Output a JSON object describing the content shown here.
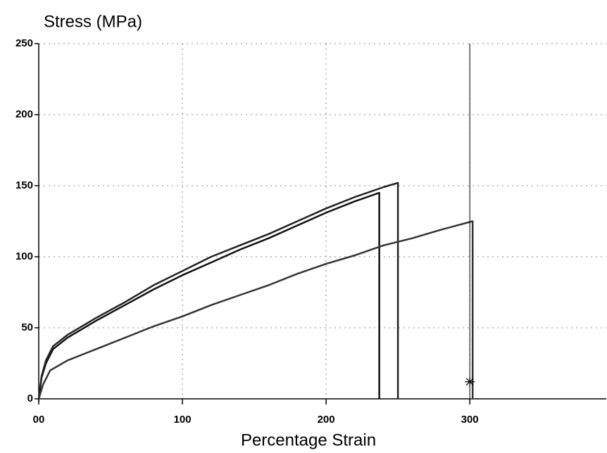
{
  "chart_data": {
    "type": "line",
    "title": "Stress (MPa)",
    "x_label": "Percentage Strain",
    "xlim": [
      0,
      395
    ],
    "ylim": [
      -2,
      250
    ],
    "xticks": [
      {
        "value": 0,
        "label": "00"
      },
      100,
      200,
      300
    ],
    "yticks": [
      0,
      50,
      100,
      150,
      200,
      250
    ],
    "grid": true,
    "series": [
      {
        "color": "#111111",
        "x": [
          0,
          2,
          5,
          10,
          20,
          40,
          60,
          80,
          100,
          120,
          140,
          160,
          180,
          200,
          220,
          237,
          237
        ],
        "values": [
          0,
          15,
          25,
          35,
          43,
          55,
          66,
          77,
          87,
          96,
          105,
          113,
          122,
          131,
          139,
          145,
          0
        ]
      },
      {
        "color": "#222222",
        "x": [
          0,
          2,
          5,
          10,
          20,
          40,
          60,
          80,
          100,
          120,
          140,
          160,
          180,
          200,
          220,
          240,
          250,
          250
        ],
        "values": [
          0,
          16,
          27,
          37,
          45,
          57,
          68,
          80,
          90,
          100,
          108,
          116,
          125,
          134,
          142,
          149,
          152,
          0
        ]
      },
      {
        "color": "#333333",
        "x": [
          0,
          3,
          8,
          20,
          40,
          60,
          80,
          100,
          120,
          140,
          160,
          180,
          200,
          220,
          240,
          260,
          280,
          302,
          302
        ],
        "values": [
          0,
          10,
          20,
          27,
          35,
          43,
          51,
          58,
          66,
          73,
          80,
          88,
          95,
          101,
          108,
          113,
          119,
          125,
          0
        ]
      }
    ],
    "markers": [
      {
        "x": 300,
        "y": 12
      }
    ]
  }
}
